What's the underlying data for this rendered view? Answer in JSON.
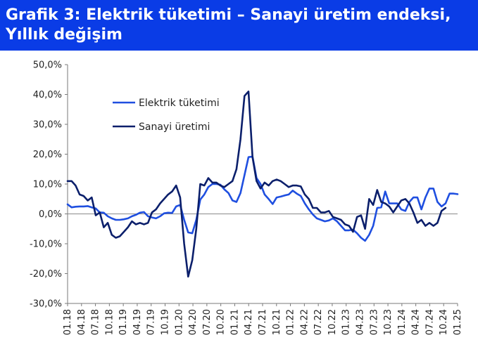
{
  "header": {
    "title_line1": "Grafik 3: Elektrik tüketimi – Sanayi üretim endeksi,",
    "title_line2": "Yıllık değişim"
  },
  "chart_data": {
    "type": "line",
    "title": "Grafik 3: Elektrik tüketimi – Sanayi üretim endeksi, Yıllık değişim",
    "ylim": [
      -30,
      50
    ],
    "y_ticks": [
      50,
      40,
      30,
      20,
      10,
      0,
      -10,
      -20,
      -30
    ],
    "y_tick_labels": [
      "50,0%",
      "40,0%",
      "30,0%",
      "20,0%",
      "10,0%",
      "0,0%",
      "-10,0%",
      "-20,0%",
      "-30,0%"
    ],
    "x_tick_labels": [
      "01.18",
      "04.18",
      "07.18",
      "10.18",
      "01.19",
      "04.19",
      "07.19",
      "10.19",
      "01.20",
      "04.20",
      "07.20",
      "10.20",
      "01.21",
      "04.21",
      "07.21",
      "10.21",
      "01.22",
      "04.22",
      "07.22",
      "10.22",
      "01.23",
      "04.23",
      "07.23",
      "10.23",
      "01.24",
      "04.24",
      "07.24",
      "10.24",
      "01.25"
    ],
    "grid": false,
    "legend_position": "top-left",
    "colors": {
      "elektrik": "#1f4fe0",
      "sanayi": "#0b1f6b",
      "zero_line": "#8a8a8a"
    },
    "series": [
      {
        "name": "Elektrik tüketimi",
        "color": "#1f4fe0",
        "values": [
          3.2,
          2.2,
          2.4,
          2.5,
          2.5,
          2.6,
          2.2,
          1.8,
          0.5,
          0.4,
          -0.8,
          -1.5,
          -2.0,
          -2.0,
          -1.8,
          -1.5,
          -0.8,
          -0.3,
          0.4,
          0.6,
          -0.8,
          -1.2,
          -1.5,
          -0.8,
          0.2,
          0.4,
          0.3,
          2.5,
          3.0,
          -2.0,
          -6.2,
          -6.5,
          -2.0,
          4.8,
          6.5,
          9.0,
          10.0,
          10.0,
          9.8,
          8.2,
          7.0,
          4.5,
          4.0,
          7.0,
          13.0,
          19.0,
          19.2,
          12.0,
          10.0,
          6.5,
          5.0,
          3.3,
          5.5,
          5.8,
          6.2,
          6.5,
          7.8,
          6.8,
          6.0,
          3.5,
          1.5,
          -0.2,
          -1.5,
          -2.0,
          -2.5,
          -2.2,
          -1.5,
          -2.5,
          -4.0,
          -5.5,
          -5.5,
          -5.3,
          -6.5,
          -8.0,
          -9.0,
          -7.0,
          -4.0,
          2.0,
          2.2,
          7.5,
          3.5,
          3.5,
          3.5,
          1.5,
          1.0,
          4.0,
          5.5,
          5.5,
          1.5,
          5.5,
          8.5,
          8.5,
          4.0,
          2.5,
          3.5,
          6.8,
          6.8,
          6.6
        ]
      },
      {
        "name": "Sanayi üretimi",
        "color": "#0b1f6b",
        "values": [
          11.0,
          11.0,
          9.5,
          6.5,
          6.0,
          4.5,
          5.5,
          -0.5,
          0.5,
          -4.5,
          -3.0,
          -7.0,
          -8.0,
          -7.5,
          -6.0,
          -4.5,
          -2.5,
          -3.5,
          -3.0,
          -3.5,
          -3.0,
          0.5,
          1.5,
          3.5,
          5.0,
          6.5,
          7.5,
          9.5,
          5.5,
          -10.0,
          -21.0,
          -15.5,
          -5.0,
          10.0,
          9.5,
          12.0,
          10.5,
          10.5,
          9.5,
          9.0,
          10.0,
          11.0,
          15.0,
          25.0,
          39.5,
          41.0,
          19.0,
          11.0,
          8.5,
          10.5,
          9.5,
          11.0,
          11.5,
          11.0,
          10.0,
          9.0,
          9.5,
          9.5,
          9.2,
          6.5,
          5.0,
          2.0,
          2.0,
          0.5,
          0.5,
          1.0,
          -1.0,
          -1.5,
          -2.0,
          -3.5,
          -4.0,
          -6.0,
          -1.0,
          -0.5,
          -5.0,
          5.0,
          3.0,
          8.0,
          4.0,
          3.5,
          2.5,
          0.5,
          2.5,
          4.5,
          5.0,
          3.5,
          0.5,
          -3.0,
          -2.0,
          -4.0,
          -3.0,
          -4.0,
          -3.0,
          1.0,
          2.0
        ]
      }
    ]
  }
}
